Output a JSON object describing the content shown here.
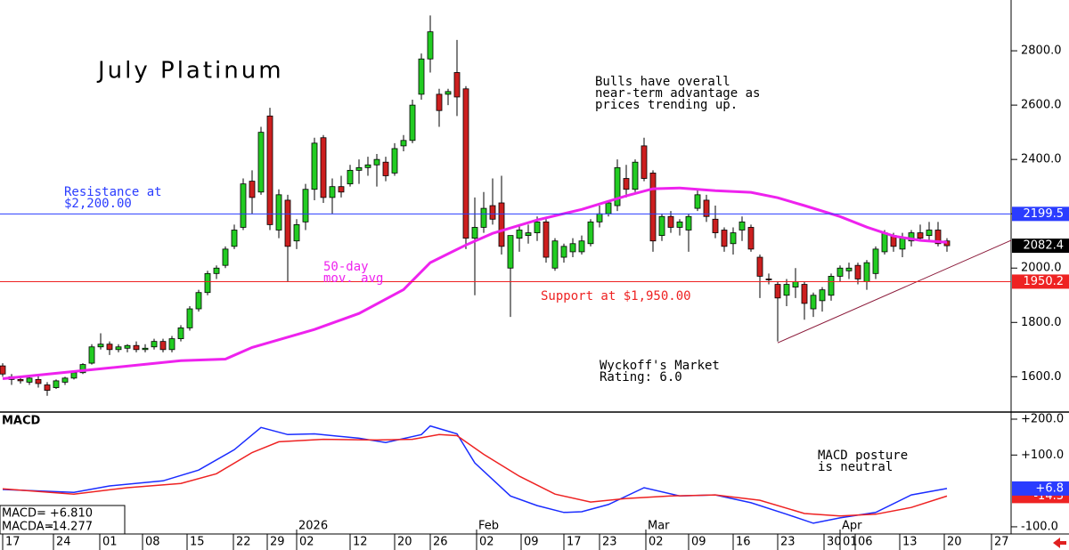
{
  "chart_data": [
    {
      "type": "candlestick",
      "title": "July Platinum",
      "xlim": [
        -0.3,
        113.2
      ],
      "ylim": [
        1470,
        2987
      ],
      "yticks": [
        {
          "value": 1600,
          "label": "1600.0"
        },
        {
          "value": 1800,
          "label": "1800.0"
        },
        {
          "value": 2000,
          "label": "2000.0"
        },
        {
          "value": 2200,
          "label": "2200.0"
        },
        {
          "value": 2400,
          "label": "2400.0"
        },
        {
          "value": 2600,
          "label": "2600.0"
        },
        {
          "value": 2800,
          "label": "2800.0"
        }
      ],
      "up_color": "#22cc22",
      "down_color": "#cc1f1f",
      "open": [
        1640,
        1600,
        1590,
        1580,
        1590,
        1570,
        1560,
        1580,
        1595,
        1615,
        1650,
        1710,
        1720,
        1700,
        1705,
        1715,
        1700,
        1710,
        1730,
        1700,
        1740,
        1780,
        1850,
        1910,
        1980,
        2010,
        2080,
        2150,
        2320,
        2280,
        2560,
        2140,
        2250,
        2100,
        2170,
        2290,
        2480,
        2260,
        2300,
        2310,
        2360,
        2370,
        2380,
        2390,
        2350,
        2450,
        2470,
        2640,
        2770,
        2640,
        2640,
        2720,
        2660,
        2110,
        2150,
        2230,
        2240,
        2000,
        2110,
        2120,
        2130,
        2170,
        2000,
        2040,
        2060,
        2060,
        2090,
        2170,
        2200,
        2230,
        2330,
        2290,
        2450,
        2350,
        2120,
        2190,
        2150,
        2140,
        2220,
        2250,
        2180,
        2140,
        2090,
        2140,
        2150,
        2040,
        1960,
        1940,
        1900,
        1930,
        1940,
        1850,
        1880,
        1900,
        1970,
        1990,
        2010,
        1950,
        1980,
        2060,
        2120,
        2070,
        2100,
        2130,
        2120,
        2140,
        2100
      ],
      "high": [
        1650,
        1610,
        1600,
        1600,
        1610,
        1580,
        1590,
        1600,
        1620,
        1650,
        1720,
        1760,
        1730,
        1720,
        1720,
        1730,
        1720,
        1740,
        1740,
        1750,
        1790,
        1860,
        1920,
        1990,
        2010,
        2080,
        2160,
        2330,
        2360,
        2520,
        2590,
        2290,
        2270,
        2180,
        2310,
        2480,
        2490,
        2330,
        2340,
        2380,
        2400,
        2410,
        2420,
        2410,
        2460,
        2490,
        2620,
        2790,
        2930,
        2660,
        2660,
        2840,
        2670,
        2260,
        2280,
        2330,
        2340,
        2120,
        2160,
        2160,
        2190,
        2180,
        2110,
        2090,
        2110,
        2120,
        2180,
        2230,
        2250,
        2400,
        2380,
        2400,
        2480,
        2360,
        2200,
        2210,
        2180,
        2200,
        2290,
        2270,
        2230,
        2150,
        2150,
        2190,
        2160,
        2050,
        1980,
        1950,
        1960,
        2000,
        1950,
        1910,
        1930,
        1980,
        2010,
        2020,
        2020,
        2030,
        2080,
        2140,
        2130,
        2130,
        2140,
        2160,
        2170,
        2170,
        2110
      ],
      "low": [
        1600,
        1570,
        1575,
        1570,
        1560,
        1530,
        1555,
        1570,
        1590,
        1610,
        1645,
        1700,
        1680,
        1690,
        1690,
        1690,
        1690,
        1700,
        1690,
        1690,
        1730,
        1770,
        1840,
        1900,
        1960,
        2000,
        2070,
        2140,
        2200,
        2270,
        2140,
        2110,
        1950,
        2070,
        2140,
        2250,
        2240,
        2200,
        2260,
        2300,
        2310,
        2340,
        2300,
        2320,
        2340,
        2430,
        2460,
        2620,
        2720,
        2520,
        2600,
        2560,
        2070,
        1900,
        2130,
        2160,
        2050,
        1820,
        2060,
        2090,
        2100,
        2020,
        1990,
        2020,
        2040,
        2050,
        2080,
        2150,
        2190,
        2210,
        2260,
        2280,
        2320,
        2060,
        2100,
        2130,
        2120,
        2060,
        2210,
        2170,
        2110,
        2060,
        2050,
        2100,
        2060,
        1890,
        1940,
        1730,
        1860,
        1890,
        1810,
        1820,
        1840,
        1880,
        1950,
        1960,
        1940,
        1920,
        1960,
        2050,
        2060,
        2040,
        2080,
        2100,
        2100,
        2080,
        2060
      ],
      "close": [
        1610,
        1590,
        1585,
        1595,
        1575,
        1550,
        1585,
        1595,
        1615,
        1645,
        1710,
        1720,
        1700,
        1710,
        1715,
        1700,
        1705,
        1730,
        1700,
        1740,
        1780,
        1850,
        1910,
        1980,
        2000,
        2070,
        2140,
        2310,
        2260,
        2500,
        2160,
        2270,
        2080,
        2160,
        2290,
        2460,
        2260,
        2300,
        2280,
        2360,
        2370,
        2380,
        2400,
        2340,
        2440,
        2470,
        2600,
        2770,
        2870,
        2580,
        2650,
        2630,
        2110,
        2150,
        2220,
        2180,
        2080,
        2120,
        2140,
        2130,
        2170,
        2040,
        2100,
        2080,
        2090,
        2100,
        2170,
        2200,
        2240,
        2370,
        2290,
        2390,
        2330,
        2100,
        2190,
        2150,
        2170,
        2190,
        2270,
        2190,
        2130,
        2080,
        2130,
        2170,
        2070,
        1970,
        1960,
        1890,
        1940,
        1950,
        1870,
        1900,
        1920,
        1970,
        2000,
        2000,
        1960,
        2020,
        2070,
        2130,
        2080,
        2110,
        2130,
        2110,
        2140,
        2090,
        2082.4
      ],
      "overlay": {
        "color": "#ee22ee",
        "x": [
          0,
          10,
          20,
          25,
          28,
          35,
          40,
          45,
          48,
          52,
          55,
          60,
          65,
          70,
          73,
          76,
          80,
          84,
          87,
          90,
          94,
          97,
          100,
          103,
          106
        ],
        "values": [
          1593,
          1626,
          1659,
          1665,
          1708,
          1774,
          1833,
          1921,
          2020,
          2085,
          2128,
          2177,
          2216,
          2266,
          2292,
          2295,
          2285,
          2279,
          2259,
          2230,
          2190,
          2151,
          2118,
          2102,
          2095
        ]
      },
      "trendline": {
        "color": "#8b1a3a",
        "x": [
          87,
          113.2
        ],
        "values": [
          1725,
          2102
        ]
      },
      "axis_markers": [
        {
          "value": 2199.5,
          "color": "#2a3cff",
          "line": true
        },
        {
          "value": 2082.4,
          "color": "#000000",
          "line": false
        },
        {
          "value": 1950.2,
          "color": "#ee2222",
          "line": true
        }
      ],
      "annotations": [
        {
          "lines": [
            "Bulls have overall",
            "near-term advantage as",
            "prices trending up."
          ]
        },
        {
          "lines": [
            "Resistance at",
            "$2,200.00"
          ]
        },
        {
          "lines": [
            "50-day",
            "mov. avg"
          ]
        },
        {
          "lines": [
            "Support at $1,950.00"
          ]
        },
        {
          "lines": [
            "Wyckoff's Market",
            "Rating: 6.0"
          ]
        }
      ]
    },
    {
      "type": "line",
      "title": "MACD",
      "xlim": [
        -0.3,
        113.2
      ],
      "ylim": [
        -120,
        219.8
      ],
      "yticks": [
        {
          "value": 200,
          "label": "+200.0"
        },
        {
          "value": 100,
          "label": "+100.0"
        },
        {
          "value": -100,
          "label": "-100.0"
        }
      ],
      "series": [
        {
          "name": "MACD=",
          "readout": "+6.810",
          "color": "#1a2cff",
          "x": [
            0,
            8,
            12,
            18,
            22,
            26,
            29,
            32,
            35,
            40,
            43,
            47,
            48,
            51,
            53,
            57,
            60,
            63,
            65,
            68,
            72,
            76,
            80,
            84,
            88,
            91,
            94,
            98,
            102,
            106
          ],
          "values": [
            4,
            -4,
            14,
            28,
            58,
            115,
            177,
            157,
            159,
            147,
            135,
            157,
            181,
            159,
            78,
            -14,
            -41,
            -60,
            -58,
            -38,
            9,
            -14,
            -11,
            -33,
            -65,
            -90,
            -75,
            -60,
            -11,
            6.81
          ]
        },
        {
          "name": "MACDA=",
          "readout": "-14.277",
          "color": "#ee2222",
          "x": [
            0,
            8,
            14,
            20,
            24,
            28,
            31,
            36,
            42,
            46,
            49,
            51,
            54,
            58,
            62,
            66,
            70,
            75,
            80,
            85,
            90,
            94,
            98,
            102,
            106
          ],
          "values": [
            6,
            -9,
            9,
            21,
            48,
            107,
            137,
            144,
            142,
            144,
            157,
            154,
            102,
            41,
            -9,
            -31,
            -21,
            -14,
            -11,
            -26,
            -63,
            -70,
            -65,
            -46,
            -14.277
          ]
        }
      ],
      "axis_markers": [
        {
          "value": -14.3,
          "color": "#ee2222"
        },
        {
          "value": 6.8,
          "label": "+6.8",
          "color": "#2a3cff"
        }
      ],
      "annotations": [
        {
          "lines": [
            "MACD posture",
            "is neutral"
          ]
        }
      ],
      "xticks": [
        {
          "value": 0,
          "label": "17"
        },
        {
          "value": 5.7,
          "label": "24"
        },
        {
          "value": 10.9,
          "label": "01"
        },
        {
          "value": 15.7,
          "label": "08"
        },
        {
          "value": 20.7,
          "label": "15"
        },
        {
          "value": 25.9,
          "label": "22"
        },
        {
          "value": 29.7,
          "label": "29"
        },
        {
          "value": 33,
          "label": "02"
        },
        {
          "value": 39,
          "label": "12"
        },
        {
          "value": 44,
          "label": "20"
        },
        {
          "value": 48,
          "label": "26"
        },
        {
          "value": 53.2,
          "label": "02"
        },
        {
          "value": 58.2,
          "label": "09"
        },
        {
          "value": 63,
          "label": "17"
        },
        {
          "value": 67,
          "label": "23"
        },
        {
          "value": 72.2,
          "label": "02"
        },
        {
          "value": 77,
          "label": "09"
        },
        {
          "value": 82,
          "label": "16"
        },
        {
          "value": 87,
          "label": "23"
        },
        {
          "value": 92.2,
          "label": "30"
        },
        {
          "value": 94,
          "label": "01"
        },
        {
          "value": 95.7,
          "label": "06"
        },
        {
          "value": 100.7,
          "label": "13"
        },
        {
          "value": 105.7,
          "label": "20"
        },
        {
          "value": 111,
          "label": "27"
        }
      ],
      "month_labels": [
        {
          "value": 33,
          "label": "2026"
        },
        {
          "value": 53.2,
          "label": "Feb"
        },
        {
          "value": 72.2,
          "label": "Mar"
        },
        {
          "value": 94,
          "label": "Apr"
        }
      ]
    }
  ]
}
